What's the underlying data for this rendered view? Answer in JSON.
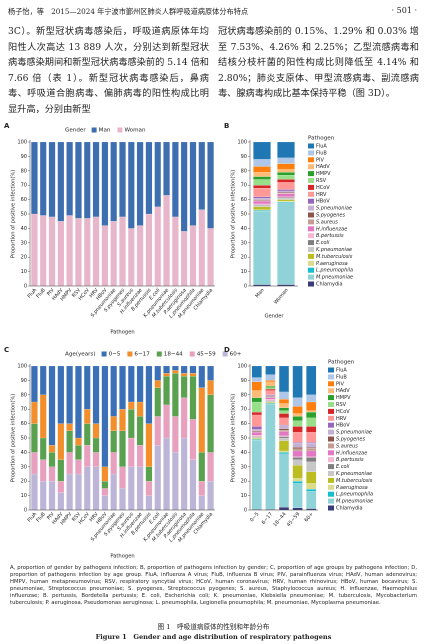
{
  "header": {
    "left": "杨子怡，等　2015—2024 年宁波市鄞州区肺炎人群呼吸道病原体分布特点",
    "page": "· 501 ·"
  },
  "body": {
    "left": "3C）。新型冠状病毒感染后，呼吸道病原体年均阳性人次高达 13 889 人次，分别达到新型冠状病毒感染期间和新型冠状病毒感染前的 5.14 倍和 7.66 倍（表 1）。新型冠状病毒感染后，鼻病毒、呼吸道合胞病毒、偏肺病毒的阳性构成比明显升高，分别由新型",
    "right": "冠状病毒感染前的 0.15%、1.29% 和 0.03% 增至 7.53%、4.26% 和 2.25%；乙型流感病毒和结核分枝杆菌的阳性构成比则降低至 4.14% 和 2.80%；肺炎支原体、甲型流感病毒、副流感病毒、腺病毒构成比基本保持平稳（图 3D）。"
  },
  "chart_data": [
    {
      "type": "bar",
      "stacked": true,
      "panel": "A",
      "legend_title": "Gender",
      "legend": "top",
      "xlabel": "Pathogen",
      "ylabel": "Proportion of positive infection(%)",
      "categories": [
        "FluA",
        "FluB",
        "PIV",
        "HAdV",
        "HMPV",
        "RSV",
        "HCoV",
        "HRV",
        "HBoV",
        "S.pneumoniae",
        "S.pyogenes",
        "S.aureus",
        "H.influenzae",
        "B.pertussis",
        "E.coli",
        "K.pneumoniae",
        "M.tuberculosis",
        "P.aeruginosa",
        "L.pneumophila",
        "M.pneumoniae",
        "Chlamydia"
      ],
      "series": [
        {
          "name": "Man",
          "color": "#3d6fb0",
          "values": [
            50,
            51,
            52,
            55,
            51,
            53,
            53,
            52,
            58,
            55,
            52,
            60,
            58,
            50,
            45,
            37,
            52,
            62,
            58,
            47,
            60
          ]
        },
        {
          "name": "Woman",
          "color": "#e8b6cb",
          "values": [
            50,
            49,
            48,
            45,
            49,
            47,
            47,
            48,
            42,
            45,
            48,
            40,
            42,
            50,
            55,
            63,
            48,
            38,
            42,
            53,
            40
          ]
        }
      ],
      "ylim": [
        0,
        100
      ],
      "yticks": [
        0,
        10,
        20,
        30,
        40,
        50,
        60,
        70,
        80,
        90,
        100
      ]
    },
    {
      "type": "bar",
      "stacked": true,
      "panel": "B",
      "legend_title": "Pathogen",
      "legend": "right",
      "xlabel": "Gender",
      "ylabel": "Proportion of positive infection(%)",
      "categories": [
        "Man",
        "Woman"
      ],
      "series": [
        {
          "name": "FluA",
          "color": "#1f77b4",
          "values": [
            12,
            11
          ]
        },
        {
          "name": "FluB",
          "color": "#aec7e8",
          "values": [
            5,
            4
          ]
        },
        {
          "name": "PIV",
          "color": "#ff7f0e",
          "values": [
            4,
            4
          ]
        },
        {
          "name": "HAdV",
          "color": "#ffbb78",
          "values": [
            3,
            2
          ]
        },
        {
          "name": "HMPV",
          "color": "#2ca02c",
          "values": [
            2,
            2
          ]
        },
        {
          "name": "RSV",
          "color": "#98df8a",
          "values": [
            4,
            3
          ]
        },
        {
          "name": "HCoV",
          "color": "#d62728",
          "values": [
            2,
            2
          ]
        },
        {
          "name": "HRV",
          "color": "#ff9896",
          "values": [
            6,
            5
          ]
        },
        {
          "name": "HBoV",
          "color": "#9467bd",
          "values": [
            1,
            1
          ]
        },
        {
          "name": "S.pneumoniae",
          "color": "#c5b0d5",
          "values": [
            1,
            1
          ]
        },
        {
          "name": "S.pyogenes",
          "color": "#8c564b",
          "values": [
            0.5,
            0.5
          ]
        },
        {
          "name": "S.aureus",
          "color": "#c49c94",
          "values": [
            0.5,
            0.5
          ]
        },
        {
          "name": "H.influenzae",
          "color": "#e377c2",
          "values": [
            2,
            2
          ]
        },
        {
          "name": "B.pertussis",
          "color": "#f7b6d2",
          "values": [
            0.5,
            0.5
          ]
        },
        {
          "name": "E.coli",
          "color": "#7f7f7f",
          "values": [
            0.5,
            0.5
          ]
        },
        {
          "name": "K.pneumoniae",
          "color": "#c7c7c7",
          "values": [
            1,
            1
          ]
        },
        {
          "name": "M.tuberculosis",
          "color": "#bcbd22",
          "values": [
            2,
            1
          ]
        },
        {
          "name": "P.aeruginosa",
          "color": "#dbdb8d",
          "values": [
            0.5,
            0.5
          ]
        },
        {
          "name": "L.pneumophila",
          "color": "#17becf",
          "values": [
            0.5,
            0.5
          ]
        },
        {
          "name": "M.pneumoniae",
          "color": "#8fd3d9",
          "values": [
            51,
            57
          ]
        },
        {
          "name": "Chlamydia",
          "color": "#393b79",
          "values": [
            1,
            1
          ]
        }
      ],
      "ylim": [
        0,
        100
      ],
      "yticks": [
        0,
        10,
        20,
        30,
        40,
        50,
        60,
        70,
        80,
        90,
        100
      ]
    },
    {
      "type": "bar",
      "stacked": true,
      "panel": "C",
      "legend_title": "Age(years)",
      "legend": "top",
      "xlabel": "Pathogen",
      "ylabel": "Proportion of positive infection(%)",
      "categories": [
        "FluA",
        "FluB",
        "PIV",
        "HAdV",
        "HMPV",
        "RSV",
        "HCoV",
        "HRV",
        "HBoV",
        "S.pneumoniae",
        "S.pyogenes",
        "S.aureus",
        "H.influenzae",
        "B.pertussis",
        "E.coli",
        "K.pneumoniae",
        "M.tuberculosis",
        "P.aeruginosa",
        "L.pneumophila",
        "M.pneumoniae",
        "Chlamydia"
      ],
      "series": [
        {
          "name": "0~5",
          "color": "#3b6fb6",
          "values": [
            25,
            20,
            55,
            40,
            40,
            50,
            30,
            40,
            70,
            35,
            30,
            25,
            25,
            40,
            10,
            5,
            3,
            5,
            5,
            15,
            10
          ]
        },
        {
          "name": "6~17",
          "color": "#f28e2b",
          "values": [
            15,
            30,
            5,
            25,
            5,
            5,
            10,
            10,
            10,
            10,
            15,
            5,
            10,
            30,
            5,
            2,
            2,
            2,
            2,
            45,
            10
          ]
        },
        {
          "name": "18~44",
          "color": "#59a14f",
          "values": [
            20,
            15,
            10,
            15,
            15,
            10,
            15,
            10,
            5,
            15,
            25,
            20,
            20,
            10,
            20,
            20,
            30,
            15,
            30,
            20,
            40
          ]
        },
        {
          "name": "45~59",
          "color": "#e8a0bf",
          "values": [
            15,
            15,
            10,
            8,
            15,
            10,
            15,
            10,
            5,
            15,
            15,
            20,
            15,
            10,
            20,
            23,
            25,
            28,
            28,
            10,
            20
          ]
        },
        {
          "name": "60+",
          "color": "#bcb5d8",
          "values": [
            25,
            20,
            20,
            12,
            25,
            25,
            30,
            30,
            10,
            25,
            15,
            30,
            30,
            10,
            45,
            50,
            40,
            50,
            35,
            10,
            20
          ]
        }
      ],
      "ylim": [
        0,
        100
      ],
      "yticks": [
        0,
        10,
        20,
        30,
        40,
        50,
        60,
        70,
        80,
        90,
        100
      ]
    },
    {
      "type": "bar",
      "stacked": true,
      "panel": "D",
      "legend_title": "Pathogen",
      "legend": "right",
      "ylabel": "Proportion of positive infection(%)",
      "categories": [
        "0~5",
        "6~17",
        "18~44",
        "45~59",
        "60+"
      ],
      "series": [
        {
          "name": "FluA",
          "color": "#1f77b4",
          "values": [
            8,
            6,
            18,
            22,
            20
          ]
        },
        {
          "name": "FluB",
          "color": "#aec7e8",
          "values": [
            3,
            4,
            5,
            6,
            5
          ]
        },
        {
          "name": "PIV",
          "color": "#ff7f0e",
          "values": [
            6,
            1,
            3,
            5,
            6
          ]
        },
        {
          "name": "HAdV",
          "color": "#ffbb78",
          "values": [
            5,
            3,
            3,
            2,
            1
          ]
        },
        {
          "name": "HMPV",
          "color": "#2ca02c",
          "values": [
            3,
            1,
            2,
            3,
            4
          ]
        },
        {
          "name": "RSV",
          "color": "#98df8a",
          "values": [
            7,
            1,
            2,
            4,
            6
          ]
        },
        {
          "name": "HCoV",
          "color": "#d62728",
          "values": [
            2,
            1,
            3,
            4,
            4
          ]
        },
        {
          "name": "HRV",
          "color": "#ff9896",
          "values": [
            8,
            3,
            5,
            7,
            7
          ]
        },
        {
          "name": "HBoV",
          "color": "#9467bd",
          "values": [
            2,
            0.5,
            0.5,
            0.5,
            0.5
          ]
        },
        {
          "name": "S.pneumoniae",
          "color": "#c5b0d5",
          "values": [
            1,
            0.5,
            2,
            3,
            3
          ]
        },
        {
          "name": "S.pyogenes",
          "color": "#8c564b",
          "values": [
            0.5,
            0.5,
            1,
            1,
            0.5
          ]
        },
        {
          "name": "S.aureus",
          "color": "#c49c94",
          "values": [
            0.5,
            0.5,
            1,
            1.5,
            2
          ]
        },
        {
          "name": "H.influenzae",
          "color": "#e377c2",
          "values": [
            2,
            1,
            3,
            4,
            4
          ]
        },
        {
          "name": "B.pertussis",
          "color": "#f7b6d2",
          "values": [
            1,
            1,
            0.5,
            0.5,
            0.5
          ]
        },
        {
          "name": "E.coli",
          "color": "#7f7f7f",
          "values": [
            0.5,
            0.5,
            1,
            1.5,
            3
          ]
        },
        {
          "name": "K.pneumoniae",
          "color": "#c7c7c7",
          "values": [
            0.5,
            0.5,
            2,
            4,
            7
          ]
        },
        {
          "name": "M.tuberculosis",
          "color": "#bcbd22",
          "values": [
            0.5,
            0.5,
            7,
            9,
            8
          ]
        },
        {
          "name": "P.aeruginosa",
          "color": "#dbdb8d",
          "values": [
            0.5,
            0.5,
            1,
            2,
            4
          ]
        },
        {
          "name": "L.pneumophila",
          "color": "#17becf",
          "values": [
            0.5,
            0.5,
            1,
            1.5,
            1.5
          ]
        },
        {
          "name": "M.pneumoniae",
          "color": "#8fd3d9",
          "values": [
            48,
            73,
            37,
            17,
            12
          ]
        },
        {
          "name": "Chlamydia",
          "color": "#393b79",
          "values": [
            0.5,
            0.5,
            2,
            1.5,
            1
          ]
        }
      ],
      "ylim": [
        0,
        100
      ],
      "yticks": [
        0,
        10,
        20,
        30,
        40,
        50,
        60,
        70,
        80,
        90,
        100
      ]
    }
  ],
  "caption": {
    "note": "A, proportion of gender by pathogens infection; B, proportion of pathogens infection by gender; C, proportion of age groups by pathogens infection; D, proportion of pathogens infection by age group. FluA, influenza A virus; FluB, influenza B virus; PIV, parainfluenza virus; HAdV, human adenovirus; HMPV, human metapneumovirus; RSV, respiratory syncytial virus; HCoV, human coronavirus; HRV, human rhinovirus; HBoV, human bocavirus; S. pneumoniae, Streptococcus pneumoniae; S. pyogenes, Streptococcus pyogenes; S. aureus, Staphylococcus aureus; H. influenzae, Haemophilus influenzae; B. pertussis, Bordetella pertussis; E. coli, Escherichia coli; K. pneumoniae, Klebsiella pneumoniae; M. tuberculosis, Mycobacterium tuberculosis; P. aeruginosa, Pseudomonas aeruginosa; L. pneumophila, Legionella pneumophila; M. pneumoniae, Mycoplasma pneumoniae.",
    "title_cn": "图 1　呼吸道病原体的性别和年龄分布",
    "title_en": "Figure 1　Gender and age distribution of respiratory pathogens"
  }
}
